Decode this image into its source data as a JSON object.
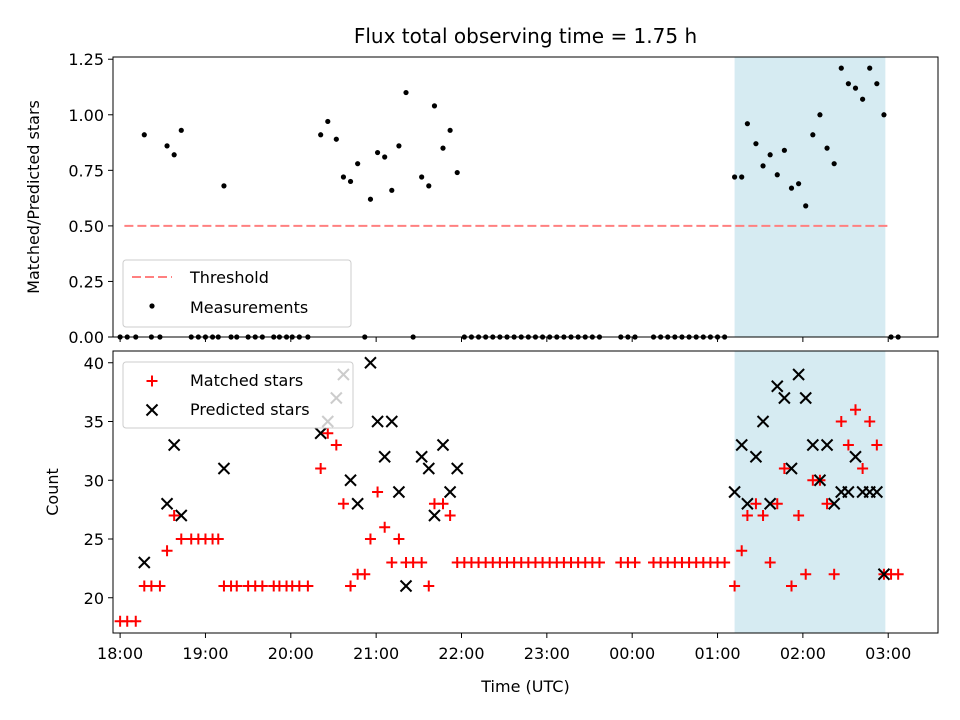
{
  "chart_data": [
    {
      "type": "scatter",
      "title": "Flux total observing time = 1.75 h",
      "xlabel": "",
      "ylabel": "Matched/Predicted stars",
      "ylim": [
        0,
        1.26
      ],
      "yticks": [
        "0.00",
        "0.25",
        "0.50",
        "0.75",
        "1.00",
        "1.25"
      ],
      "ytick_values": [
        0,
        0.25,
        0.5,
        0.75,
        1.0,
        1.25
      ],
      "threshold": {
        "name": "Threshold",
        "value": 0.5,
        "x_start": "18:03",
        "x_end": "03:00",
        "color": "#ff8080"
      },
      "highlight": {
        "x_start": "01:12",
        "x_end": "02:58",
        "color": "#add8e6"
      },
      "legend": {
        "placement": "lower-left",
        "entries": [
          "Threshold",
          "Measurements"
        ]
      },
      "series": [
        {
          "name": "Measurements",
          "marker": "dot",
          "color": "#000000",
          "points": [
            [
              "18:00",
              0
            ],
            [
              "18:05",
              0
            ],
            [
              "18:11",
              0
            ],
            [
              "18:17",
              0.91
            ],
            [
              "18:22",
              0
            ],
            [
              "18:28",
              0
            ],
            [
              "18:33",
              0.86
            ],
            [
              "18:38",
              0.82
            ],
            [
              "18:43",
              0.93
            ],
            [
              "18:50",
              0
            ],
            [
              "18:55",
              0
            ],
            [
              "19:00",
              0
            ],
            [
              "19:05",
              0
            ],
            [
              "19:09",
              0
            ],
            [
              "19:13",
              0.68
            ],
            [
              "19:18",
              0
            ],
            [
              "19:22",
              0
            ],
            [
              "19:30",
              0
            ],
            [
              "19:35",
              0
            ],
            [
              "19:40",
              0
            ],
            [
              "19:48",
              0
            ],
            [
              "19:52",
              0
            ],
            [
              "19:57",
              0
            ],
            [
              "20:01",
              0
            ],
            [
              "20:06",
              0
            ],
            [
              "20:12",
              0
            ],
            [
              "20:21",
              0.91
            ],
            [
              "20:26",
              0.97
            ],
            [
              "20:32",
              0.89
            ],
            [
              "20:37",
              0.72
            ],
            [
              "20:42",
              0.7
            ],
            [
              "20:47",
              0.78
            ],
            [
              "20:52",
              0
            ],
            [
              "20:56",
              0.62
            ],
            [
              "21:01",
              0.83
            ],
            [
              "21:06",
              0.81
            ],
            [
              "21:11",
              0.66
            ],
            [
              "21:16",
              0.86
            ],
            [
              "21:21",
              1.1
            ],
            [
              "21:26",
              0
            ],
            [
              "21:32",
              0.72
            ],
            [
              "21:37",
              0.68
            ],
            [
              "21:41",
              1.04
            ],
            [
              "21:47",
              0.85
            ],
            [
              "21:52",
              0.93
            ],
            [
              "21:57",
              0.74
            ],
            [
              "22:02",
              0
            ],
            [
              "22:07",
              0
            ],
            [
              "22:12",
              0
            ],
            [
              "22:17",
              0
            ],
            [
              "22:22",
              0
            ],
            [
              "22:27",
              0
            ],
            [
              "22:32",
              0
            ],
            [
              "22:37",
              0
            ],
            [
              "22:42",
              0
            ],
            [
              "22:47",
              0
            ],
            [
              "22:52",
              0
            ],
            [
              "22:57",
              0
            ],
            [
              "23:02",
              0
            ],
            [
              "23:07",
              0
            ],
            [
              "23:12",
              0
            ],
            [
              "23:17",
              0
            ],
            [
              "23:22",
              0
            ],
            [
              "23:27",
              0
            ],
            [
              "23:32",
              0
            ],
            [
              "23:37",
              0
            ],
            [
              "23:52",
              0
            ],
            [
              "23:57",
              0
            ],
            [
              "00:02",
              0
            ],
            [
              "00:15",
              0
            ],
            [
              "00:20",
              0
            ],
            [
              "00:25",
              0
            ],
            [
              "00:30",
              0
            ],
            [
              "00:35",
              0
            ],
            [
              "00:40",
              0
            ],
            [
              "00:45",
              0
            ],
            [
              "00:50",
              0
            ],
            [
              "00:55",
              0
            ],
            [
              "01:00",
              0
            ],
            [
              "01:05",
              0
            ],
            [
              "01:12",
              0.72
            ],
            [
              "01:17",
              0.72
            ],
            [
              "01:21",
              0.96
            ],
            [
              "01:27",
              0.87
            ],
            [
              "01:32",
              0.77
            ],
            [
              "01:37",
              0.82
            ],
            [
              "01:42",
              0.73
            ],
            [
              "01:47",
              0.84
            ],
            [
              "01:52",
              0.67
            ],
            [
              "01:57",
              0.69
            ],
            [
              "02:02",
              0.59
            ],
            [
              "02:07",
              0.91
            ],
            [
              "02:12",
              1.0
            ],
            [
              "02:17",
              0.85
            ],
            [
              "02:22",
              0.78
            ],
            [
              "02:27",
              1.21
            ],
            [
              "02:32",
              1.14
            ],
            [
              "02:37",
              1.12
            ],
            [
              "02:42",
              1.07
            ],
            [
              "02:47",
              1.21
            ],
            [
              "02:52",
              1.14
            ],
            [
              "02:57",
              1.0
            ],
            [
              "03:02",
              0
            ],
            [
              "03:07",
              0
            ]
          ]
        }
      ]
    },
    {
      "type": "scatter",
      "title": "",
      "xlabel": "Time (UTC)",
      "ylabel": "Count",
      "ylim": [
        17,
        41
      ],
      "yticks": [
        "20",
        "25",
        "30",
        "35",
        "40"
      ],
      "ytick_values": [
        20,
        25,
        30,
        35,
        40
      ],
      "xticks": [
        "18:00",
        "19:00",
        "20:00",
        "21:00",
        "22:00",
        "23:00",
        "00:00",
        "01:00",
        "02:00",
        "03:00"
      ],
      "xlim": [
        "17:55",
        "03:35"
      ],
      "highlight": {
        "x_start": "01:12",
        "x_end": "02:58",
        "color": "#add8e6"
      },
      "legend": {
        "placement": "upper-left",
        "entries": [
          "Matched stars",
          "Predicted stars"
        ]
      },
      "series": [
        {
          "name": "Matched stars",
          "marker": "plus",
          "color": "#ff0000",
          "points": [
            [
              "18:00",
              18
            ],
            [
              "18:05",
              18
            ],
            [
              "18:11",
              18
            ],
            [
              "18:17",
              21
            ],
            [
              "18:22",
              21
            ],
            [
              "18:28",
              21
            ],
            [
              "18:33",
              24
            ],
            [
              "18:38",
              27
            ],
            [
              "18:43",
              25
            ],
            [
              "18:50",
              25
            ],
            [
              "18:55",
              25
            ],
            [
              "19:00",
              25
            ],
            [
              "19:05",
              25
            ],
            [
              "19:09",
              25
            ],
            [
              "19:13",
              21
            ],
            [
              "19:18",
              21
            ],
            [
              "19:22",
              21
            ],
            [
              "19:30",
              21
            ],
            [
              "19:35",
              21
            ],
            [
              "19:40",
              21
            ],
            [
              "19:48",
              21
            ],
            [
              "19:52",
              21
            ],
            [
              "19:57",
              21
            ],
            [
              "20:01",
              21
            ],
            [
              "20:06",
              21
            ],
            [
              "20:12",
              21
            ],
            [
              "20:21",
              31
            ],
            [
              "20:26",
              34
            ],
            [
              "20:32",
              33
            ],
            [
              "20:37",
              28
            ],
            [
              "20:42",
              21
            ],
            [
              "20:47",
              22
            ],
            [
              "20:52",
              22
            ],
            [
              "20:56",
              25
            ],
            [
              "21:01",
              29
            ],
            [
              "21:06",
              26
            ],
            [
              "21:11",
              23
            ],
            [
              "21:16",
              25
            ],
            [
              "21:21",
              23
            ],
            [
              "21:26",
              23
            ],
            [
              "21:32",
              23
            ],
            [
              "21:37",
              21
            ],
            [
              "21:41",
              28
            ],
            [
              "21:47",
              28
            ],
            [
              "21:52",
              27
            ],
            [
              "21:57",
              23
            ],
            [
              "22:02",
              23
            ],
            [
              "22:07",
              23
            ],
            [
              "22:12",
              23
            ],
            [
              "22:17",
              23
            ],
            [
              "22:22",
              23
            ],
            [
              "22:27",
              23
            ],
            [
              "22:32",
              23
            ],
            [
              "22:37",
              23
            ],
            [
              "22:42",
              23
            ],
            [
              "22:47",
              23
            ],
            [
              "22:52",
              23
            ],
            [
              "22:57",
              23
            ],
            [
              "23:02",
              23
            ],
            [
              "23:07",
              23
            ],
            [
              "23:12",
              23
            ],
            [
              "23:17",
              23
            ],
            [
              "23:22",
              23
            ],
            [
              "23:27",
              23
            ],
            [
              "23:32",
              23
            ],
            [
              "23:37",
              23
            ],
            [
              "23:52",
              23
            ],
            [
              "23:57",
              23
            ],
            [
              "00:02",
              23
            ],
            [
              "00:15",
              23
            ],
            [
              "00:20",
              23
            ],
            [
              "00:25",
              23
            ],
            [
              "00:30",
              23
            ],
            [
              "00:35",
              23
            ],
            [
              "00:40",
              23
            ],
            [
              "00:45",
              23
            ],
            [
              "00:50",
              23
            ],
            [
              "00:55",
              23
            ],
            [
              "01:00",
              23
            ],
            [
              "01:05",
              23
            ],
            [
              "01:12",
              21
            ],
            [
              "01:17",
              24
            ],
            [
              "01:21",
              27
            ],
            [
              "01:27",
              28
            ],
            [
              "01:32",
              27
            ],
            [
              "01:37",
              23
            ],
            [
              "01:42",
              28
            ],
            [
              "01:47",
              31
            ],
            [
              "01:52",
              21
            ],
            [
              "01:57",
              27
            ],
            [
              "02:02",
              22
            ],
            [
              "02:07",
              30
            ],
            [
              "02:12",
              30
            ],
            [
              "02:17",
              28
            ],
            [
              "02:22",
              22
            ],
            [
              "02:27",
              35
            ],
            [
              "02:32",
              33
            ],
            [
              "02:37",
              36
            ],
            [
              "02:42",
              31
            ],
            [
              "02:47",
              35
            ],
            [
              "02:52",
              33
            ],
            [
              "02:57",
              22
            ],
            [
              "03:02",
              22
            ],
            [
              "03:07",
              22
            ]
          ]
        },
        {
          "name": "Predicted stars",
          "marker": "x",
          "color": "#000000",
          "points": [
            [
              "18:17",
              23
            ],
            [
              "18:33",
              28
            ],
            [
              "18:38",
              33
            ],
            [
              "18:43",
              27
            ],
            [
              "19:13",
              31
            ],
            [
              "20:21",
              34
            ],
            [
              "20:26",
              35
            ],
            [
              "20:32",
              37
            ],
            [
              "20:37",
              39
            ],
            [
              "20:42",
              30
            ],
            [
              "20:47",
              28
            ],
            [
              "20:56",
              40
            ],
            [
              "21:01",
              35
            ],
            [
              "21:06",
              32
            ],
            [
              "21:11",
              35
            ],
            [
              "21:16",
              29
            ],
            [
              "21:21",
              21
            ],
            [
              "21:32",
              32
            ],
            [
              "21:37",
              31
            ],
            [
              "21:41",
              27
            ],
            [
              "21:47",
              33
            ],
            [
              "21:52",
              29
            ],
            [
              "21:57",
              31
            ],
            [
              "01:12",
              29
            ],
            [
              "01:17",
              33
            ],
            [
              "01:21",
              28
            ],
            [
              "01:27",
              32
            ],
            [
              "01:32",
              35
            ],
            [
              "01:37",
              28
            ],
            [
              "01:42",
              38
            ],
            [
              "01:47",
              37
            ],
            [
              "01:52",
              31
            ],
            [
              "01:57",
              39
            ],
            [
              "02:02",
              37
            ],
            [
              "02:07",
              33
            ],
            [
              "02:12",
              30
            ],
            [
              "02:17",
              33
            ],
            [
              "02:22",
              28
            ],
            [
              "02:27",
              29
            ],
            [
              "02:32",
              29
            ],
            [
              "02:37",
              32
            ],
            [
              "02:42",
              29
            ],
            [
              "02:47",
              29
            ],
            [
              "02:52",
              29
            ],
            [
              "02:57",
              22
            ]
          ]
        }
      ]
    }
  ]
}
